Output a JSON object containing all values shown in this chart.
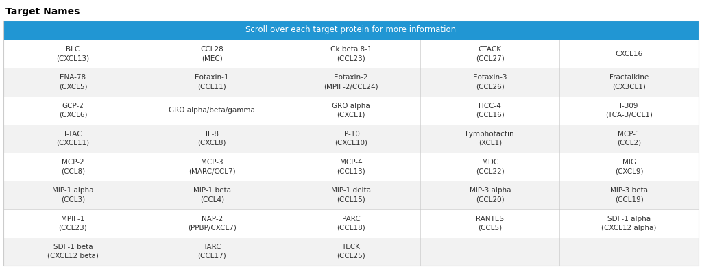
{
  "title": "Target Names",
  "header_text": "Scroll over each target protein for more information",
  "header_bg": "#2196d3",
  "header_text_color": "#ffffff",
  "rows": [
    [
      "BLC\n(CXCL13)",
      "CCL28\n(MEC)",
      "Ck beta 8-1\n(CCL23)",
      "CTACK\n(CCL27)",
      "CXCL16"
    ],
    [
      "ENA-78\n(CXCL5)",
      "Eotaxin-1\n(CCL11)",
      "Eotaxin-2\n(MPIF-2/CCL24)",
      "Eotaxin-3\n(CCL26)",
      "Fractalkine\n(CX3CL1)"
    ],
    [
      "GCP-2\n(CXCL6)",
      "GRO alpha/beta/gamma",
      "GRO alpha\n(CXCL1)",
      "HCC-4\n(CCL16)",
      "I-309\n(TCA-3/CCL1)"
    ],
    [
      "I-TAC\n(CXCL11)",
      "IL-8\n(CXCL8)",
      "IP-10\n(CXCL10)",
      "Lymphotactin\n(XCL1)",
      "MCP-1\n(CCL2)"
    ],
    [
      "MCP-2\n(CCL8)",
      "MCP-3\n(MARC/CCL7)",
      "MCP-4\n(CCL13)",
      "MDC\n(CCL22)",
      "MIG\n(CXCL9)"
    ],
    [
      "MIP-1 alpha\n(CCL3)",
      "MIP-1 beta\n(CCL4)",
      "MIP-1 delta\n(CCL15)",
      "MIP-3 alpha\n(CCL20)",
      "MIP-3 beta\n(CCL19)"
    ],
    [
      "MPIF-1\n(CCL23)",
      "NAP-2\n(PPBP/CXCL7)",
      "PARC\n(CCL18)",
      "RANTES\n(CCL5)",
      "SDF-1 alpha\n(CXCL12 alpha)"
    ],
    [
      "SDF-1 beta\n(CXCL12 beta)",
      "TARC\n(CCL17)",
      "TECK\n(CCL25)",
      "",
      ""
    ]
  ],
  "row_bg_even": "#f2f2f2",
  "row_bg_odd": "#ffffff",
  "text_color": "#333333",
  "border_color": "#cccccc",
  "title_fontsize": 10,
  "header_fontsize": 8.5,
  "cell_fontsize": 7.5,
  "fig_width": 10.24,
  "fig_height": 3.93,
  "dpi": 100
}
